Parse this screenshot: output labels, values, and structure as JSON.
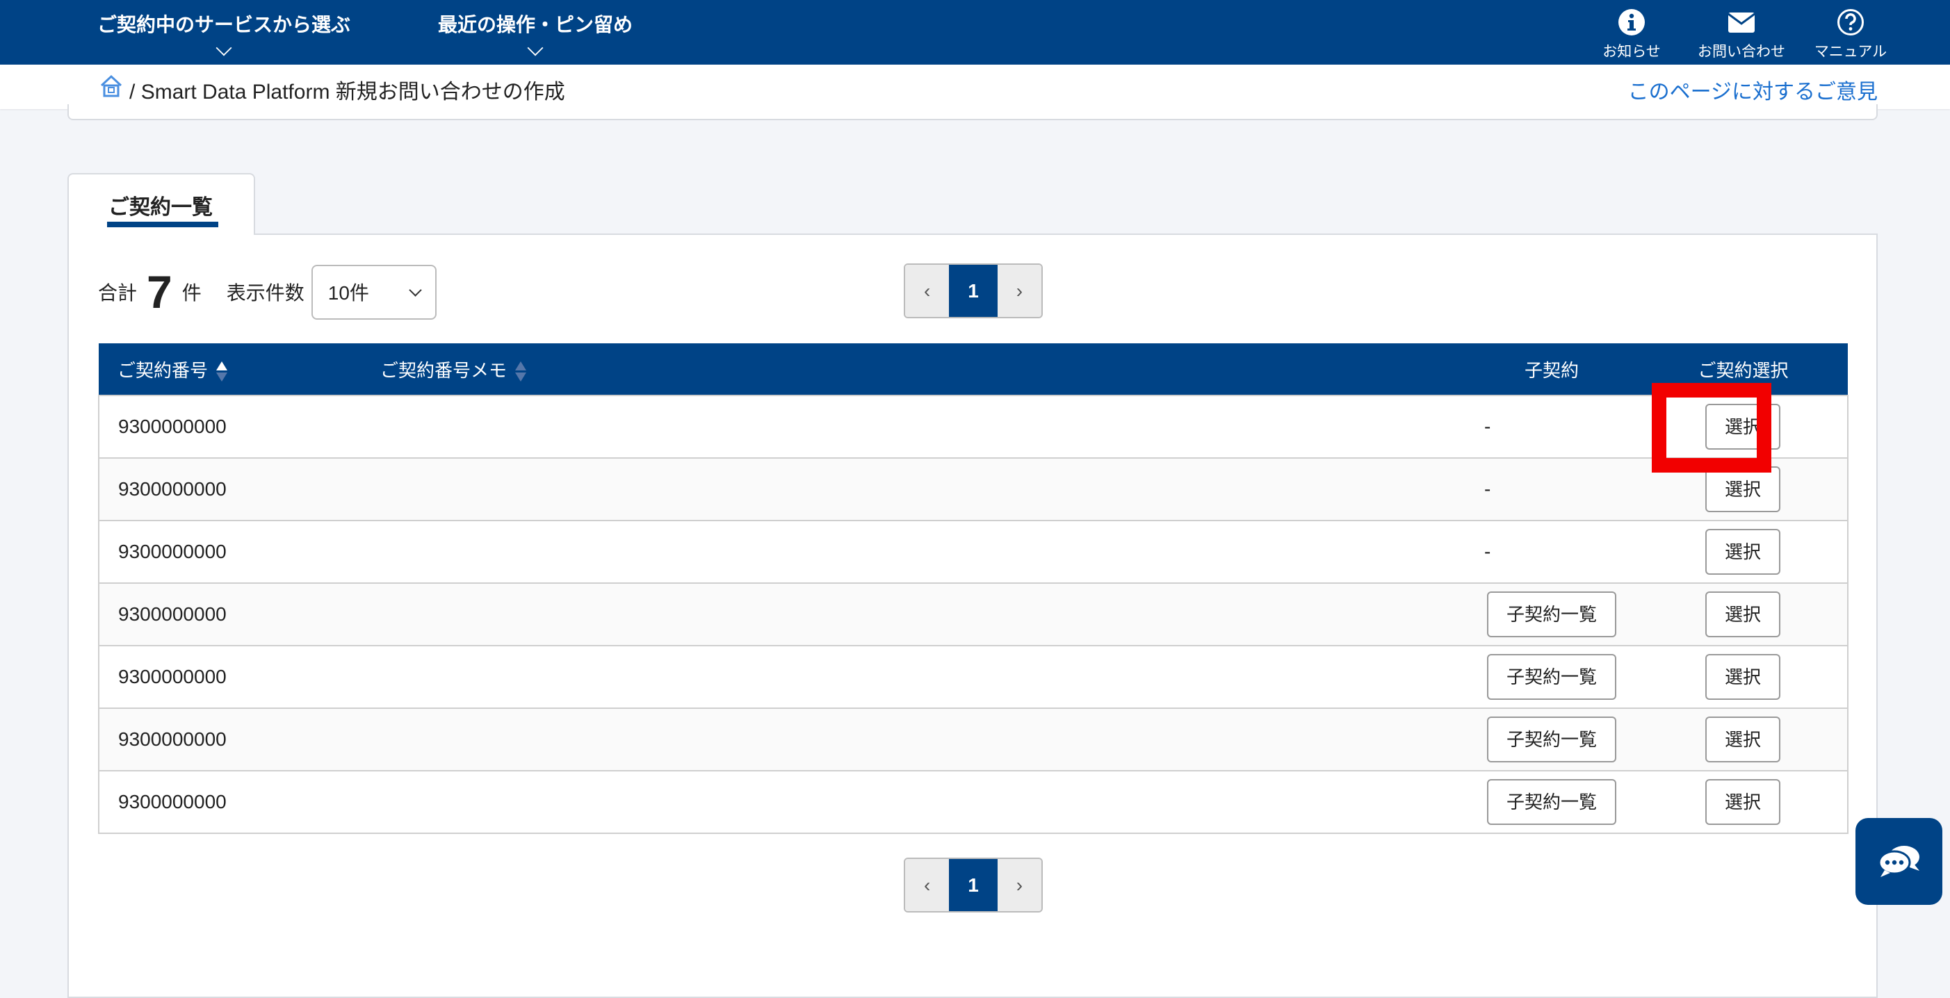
{
  "header": {
    "nav": [
      {
        "label": "ご契約中のサービスから選ぶ"
      },
      {
        "label": "最近の操作・ピン留め"
      }
    ],
    "icons": [
      {
        "label": "お知らせ",
        "icon": "info-icon"
      },
      {
        "label": "お問い合わせ",
        "icon": "mail-icon"
      },
      {
        "label": "マニュアル",
        "icon": "help-icon"
      }
    ]
  },
  "breadcrumb": {
    "separator": "/",
    "current": "Smart Data Platform 新規お問い合わせの作成",
    "feedback": "このページに対するご意見"
  },
  "tab": {
    "label": "ご契約一覧"
  },
  "summary": {
    "total_label": "合計",
    "total": "7",
    "unit": "件",
    "per_page_label": "表示件数",
    "per_page": "10件"
  },
  "pagination": {
    "prev": "‹",
    "current": "1",
    "next": "›"
  },
  "table": {
    "headers": [
      "ご契約番号",
      "ご契約番号メモ",
      "子契約",
      "ご契約選択"
    ],
    "rows": [
      {
        "number": "9300000000",
        "memo": "",
        "child": "-",
        "select": "選択"
      },
      {
        "number": "9300000000",
        "memo": "",
        "child": "-",
        "select": "選択"
      },
      {
        "number": "9300000000",
        "memo": "",
        "child": "-",
        "select": "選択"
      },
      {
        "number": "9300000000",
        "memo": "",
        "child_button": "子契約一覧",
        "select": "選択"
      },
      {
        "number": "9300000000",
        "memo": "",
        "child_button": "子契約一覧",
        "select": "選択"
      },
      {
        "number": "9300000000",
        "memo": "",
        "child_button": "子契約一覧",
        "select": "選択"
      },
      {
        "number": "9300000000",
        "memo": "",
        "child_button": "子契約一覧",
        "select": "選択"
      }
    ]
  },
  "colors": {
    "brand": "#004386",
    "highlight": "#f20000",
    "link": "#1a6fcf"
  }
}
